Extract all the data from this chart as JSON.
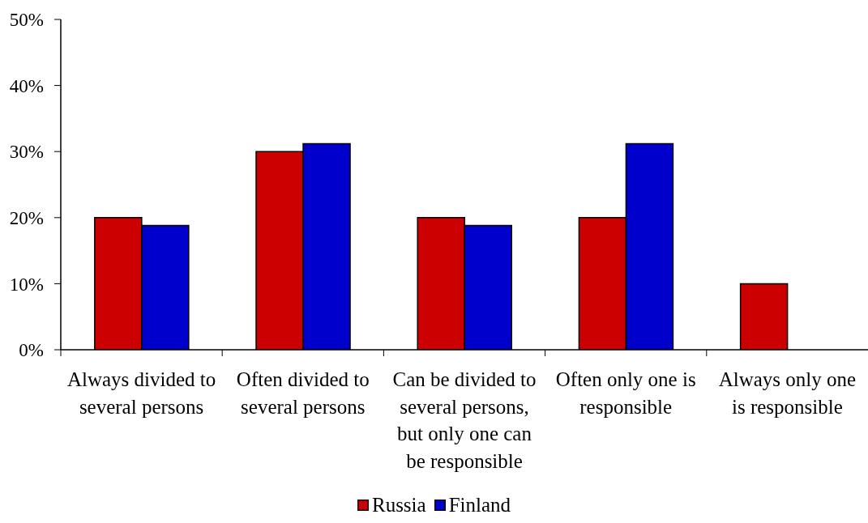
{
  "chart_data": {
    "type": "bar",
    "categories": [
      "Always divided to several persons",
      "Often divided to several persons",
      "Can be divided to several persons, but only one can be responsible",
      "Often only one is responsible",
      "Always only one is responsible"
    ],
    "series": [
      {
        "name": "Russia",
        "color": "#cc0000",
        "values": [
          20,
          30,
          20,
          20,
          10
        ]
      },
      {
        "name": "Finland",
        "color": "#0000cc",
        "values": [
          18.8,
          31.2,
          18.8,
          31.2,
          0
        ]
      }
    ],
    "ylim": [
      0,
      50
    ],
    "yticks": [
      {
        "value": 0,
        "label": "0%"
      },
      {
        "value": 10,
        "label": "10%"
      },
      {
        "value": 20,
        "label": "20%"
      },
      {
        "value": 30,
        "label": "30%"
      },
      {
        "value": 40,
        "label": "40%"
      },
      {
        "value": 50,
        "label": "50%"
      }
    ],
    "grid": false,
    "legend": "bottom"
  }
}
